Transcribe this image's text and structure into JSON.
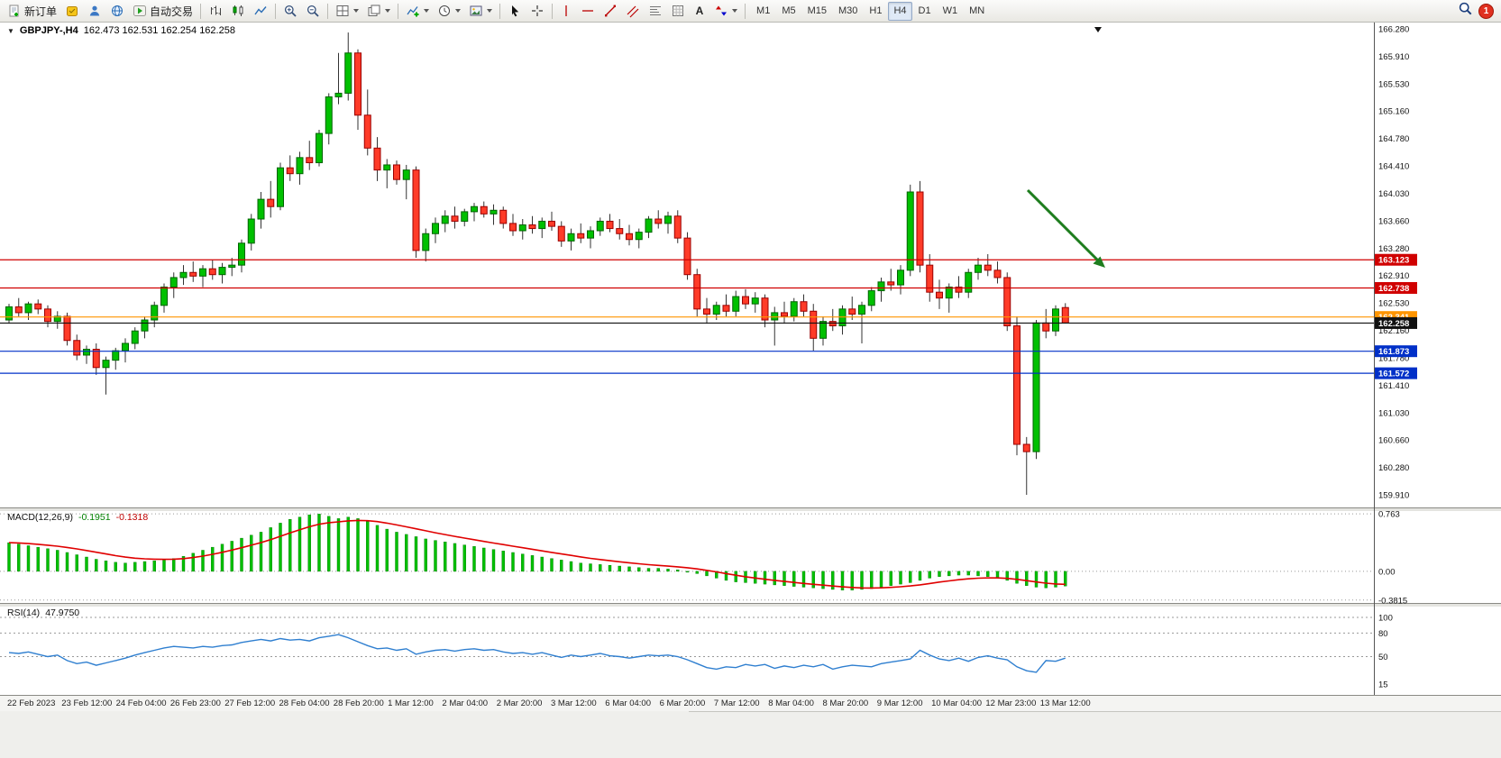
{
  "toolbar": {
    "new_order_label": "新订单",
    "autotrading_label": "自动交易",
    "timeframes": [
      "M1",
      "M5",
      "M15",
      "M30",
      "H1",
      "H4",
      "D1",
      "W1",
      "MN"
    ],
    "active_timeframe": "H4",
    "notification_count": "1",
    "icon_buttons": [
      "new-order",
      "metaeditor",
      "market",
      "help",
      "autotrading",
      "chart-bars",
      "chart-candlesticks",
      "chart-line",
      "zoom-in",
      "zoom-out",
      "tile-windows",
      "cascade-windows",
      "indicators",
      "periods-clock",
      "templates",
      "cursor",
      "crosshair",
      "vertical-line",
      "horizontal-line",
      "trendline",
      "equidistant-channel",
      "fibonacci",
      "grid",
      "text",
      "arrows",
      "shapes"
    ]
  },
  "chart_data": {
    "type": "candlestick",
    "legend": {
      "symbol": "GBPJPY-,H4",
      "ohlc": "162.473 162.531 162.254 162.258"
    },
    "price_axis": [
      "166.280",
      "165.910",
      "165.530",
      "165.160",
      "164.780",
      "164.410",
      "164.030",
      "163.660",
      "163.280",
      "162.910",
      "162.530",
      "162.160",
      "161.780",
      "161.410",
      "161.030",
      "160.660",
      "160.280",
      "159.910"
    ],
    "time_axis": [
      "22 Feb 2023",
      "23 Feb 12:00",
      "24 Feb 04:00",
      "26 Feb 23:00",
      "27 Feb 12:00",
      "28 Feb 04:00",
      "28 Feb 20:00",
      "1 Mar 12:00",
      "2 Mar 04:00",
      "2 Mar 20:00",
      "3 Mar 12:00",
      "6 Mar 04:00",
      "6 Mar 20:00",
      "7 Mar 12:00",
      "8 Mar 04:00",
      "8 Mar 20:00",
      "9 Mar 12:00",
      "10 Mar 04:00",
      "12 Mar 23:00",
      "13 Mar 12:00"
    ],
    "hlines": [
      {
        "price": 163.123,
        "label": "163.123",
        "color": "#d00000"
      },
      {
        "price": 162.738,
        "label": "162.738",
        "color": "#d00000"
      },
      {
        "price": 162.341,
        "label": "162.341",
        "color": "#ff9500"
      },
      {
        "price": 162.258,
        "label": "162.258",
        "color": "#111111"
      },
      {
        "price": 161.873,
        "label": "161.873",
        "color": "#0030c8"
      },
      {
        "price": 161.572,
        "label": "161.572",
        "color": "#0030c8"
      }
    ],
    "arrow_annotation": {
      "color": "#1e7d1e"
    },
    "colors": {
      "up": "#00c000",
      "up_border": "#006400",
      "down": "#ff3b28",
      "down_border": "#9b0000",
      "wick": "#333333"
    },
    "candles": [
      [
        162.3,
        162.52,
        162.25,
        162.48
      ],
      [
        162.48,
        162.6,
        162.35,
        162.4
      ],
      [
        162.4,
        162.55,
        162.3,
        162.52
      ],
      [
        162.52,
        162.58,
        162.38,
        162.45
      ],
      [
        162.45,
        162.5,
        162.2,
        162.28
      ],
      [
        162.28,
        162.42,
        162.18,
        162.35
      ],
      [
        162.35,
        162.4,
        161.95,
        162.02
      ],
      [
        162.02,
        162.1,
        161.75,
        161.82
      ],
      [
        161.82,
        161.95,
        161.7,
        161.9
      ],
      [
        161.9,
        161.98,
        161.55,
        161.65
      ],
      [
        161.65,
        161.8,
        161.28,
        161.75
      ],
      [
        161.75,
        161.92,
        161.62,
        161.88
      ],
      [
        161.88,
        162.05,
        161.72,
        161.98
      ],
      [
        161.98,
        162.2,
        161.9,
        162.15
      ],
      [
        162.15,
        162.35,
        162.05,
        162.3
      ],
      [
        162.3,
        162.55,
        162.2,
        162.5
      ],
      [
        162.5,
        162.8,
        162.4,
        162.75
      ],
      [
        162.75,
        162.95,
        162.6,
        162.88
      ],
      [
        162.88,
        163.05,
        162.78,
        162.95
      ],
      [
        162.95,
        163.1,
        162.82,
        162.9
      ],
      [
        162.9,
        163.05,
        162.75,
        163.0
      ],
      [
        163.0,
        163.12,
        162.85,
        162.92
      ],
      [
        162.92,
        163.08,
        162.8,
        163.02
      ],
      [
        163.02,
        163.15,
        162.9,
        163.05
      ],
      [
        163.05,
        163.4,
        162.95,
        163.35
      ],
      [
        163.35,
        163.75,
        163.25,
        163.68
      ],
      [
        163.68,
        164.05,
        163.55,
        163.95
      ],
      [
        163.95,
        164.2,
        163.7,
        163.85
      ],
      [
        163.85,
        164.45,
        163.8,
        164.38
      ],
      [
        164.38,
        164.55,
        164.2,
        164.3
      ],
      [
        164.3,
        164.6,
        164.15,
        164.52
      ],
      [
        164.52,
        164.75,
        164.35,
        164.45
      ],
      [
        164.45,
        164.9,
        164.4,
        164.85
      ],
      [
        164.85,
        165.4,
        164.7,
        165.35
      ],
      [
        165.35,
        165.95,
        165.25,
        165.4
      ],
      [
        165.4,
        166.23,
        165.3,
        165.95
      ],
      [
        165.95,
        166.0,
        164.9,
        165.1
      ],
      [
        165.1,
        165.45,
        164.55,
        164.65
      ],
      [
        164.65,
        164.8,
        164.2,
        164.35
      ],
      [
        164.35,
        164.5,
        164.1,
        164.42
      ],
      [
        164.42,
        164.48,
        164.15,
        164.22
      ],
      [
        164.22,
        164.42,
        163.95,
        164.35
      ],
      [
        164.35,
        164.4,
        163.15,
        163.25
      ],
      [
        163.25,
        163.55,
        163.1,
        163.48
      ],
      [
        163.48,
        163.7,
        163.35,
        163.62
      ],
      [
        163.62,
        163.8,
        163.5,
        163.72
      ],
      [
        163.72,
        163.85,
        163.55,
        163.65
      ],
      [
        163.65,
        163.82,
        163.58,
        163.78
      ],
      [
        163.78,
        163.9,
        163.65,
        163.85
      ],
      [
        163.85,
        163.92,
        163.7,
        163.75
      ],
      [
        163.75,
        163.88,
        163.6,
        163.8
      ],
      [
        163.8,
        163.85,
        163.55,
        163.62
      ],
      [
        163.62,
        163.75,
        163.45,
        163.52
      ],
      [
        163.52,
        163.68,
        163.4,
        163.6
      ],
      [
        163.6,
        163.72,
        163.48,
        163.55
      ],
      [
        163.55,
        163.7,
        163.42,
        163.65
      ],
      [
        163.65,
        163.78,
        163.52,
        163.58
      ],
      [
        163.58,
        163.65,
        163.3,
        163.38
      ],
      [
        163.38,
        163.55,
        163.25,
        163.48
      ],
      [
        163.48,
        163.62,
        163.35,
        163.42
      ],
      [
        163.42,
        163.58,
        163.28,
        163.52
      ],
      [
        163.52,
        163.7,
        163.45,
        163.65
      ],
      [
        163.65,
        163.75,
        163.5,
        163.55
      ],
      [
        163.55,
        163.68,
        163.4,
        163.48
      ],
      [
        163.48,
        163.6,
        163.32,
        163.4
      ],
      [
        163.4,
        163.55,
        163.28,
        163.5
      ],
      [
        163.5,
        163.72,
        163.42,
        163.68
      ],
      [
        163.68,
        163.8,
        163.55,
        163.62
      ],
      [
        163.62,
        163.78,
        163.48,
        163.72
      ],
      [
        163.72,
        163.8,
        163.35,
        163.42
      ],
      [
        163.42,
        163.5,
        162.85,
        162.92
      ],
      [
        162.92,
        163.0,
        162.35,
        162.45
      ],
      [
        162.45,
        162.6,
        162.25,
        162.38
      ],
      [
        162.38,
        162.55,
        162.3,
        162.5
      ],
      [
        162.5,
        162.65,
        162.35,
        162.42
      ],
      [
        162.42,
        162.7,
        162.35,
        162.62
      ],
      [
        162.62,
        162.72,
        162.45,
        162.52
      ],
      [
        162.52,
        162.68,
        162.4,
        162.6
      ],
      [
        162.6,
        162.65,
        162.2,
        162.3
      ],
      [
        162.3,
        162.48,
        161.95,
        162.4
      ],
      [
        162.4,
        162.55,
        162.25,
        162.35
      ],
      [
        162.35,
        162.6,
        162.28,
        162.55
      ],
      [
        162.55,
        162.65,
        162.35,
        162.42
      ],
      [
        162.42,
        162.52,
        161.88,
        162.05
      ],
      [
        162.05,
        162.35,
        161.95,
        162.28
      ],
      [
        162.28,
        162.45,
        162.15,
        162.22
      ],
      [
        162.22,
        162.5,
        162.1,
        162.45
      ],
      [
        162.45,
        162.62,
        162.3,
        162.38
      ],
      [
        162.38,
        162.55,
        161.98,
        162.5
      ],
      [
        162.5,
        162.75,
        162.42,
        162.7
      ],
      [
        162.7,
        162.88,
        162.55,
        162.82
      ],
      [
        162.82,
        163.0,
        162.7,
        162.78
      ],
      [
        162.78,
        163.05,
        162.65,
        162.98
      ],
      [
        162.98,
        164.15,
        162.9,
        164.05
      ],
      [
        164.05,
        164.2,
        162.95,
        163.05
      ],
      [
        163.05,
        163.2,
        162.55,
        162.68
      ],
      [
        162.68,
        162.85,
        162.45,
        162.6
      ],
      [
        162.6,
        162.8,
        162.4,
        162.75
      ],
      [
        162.75,
        162.9,
        162.6,
        162.68
      ],
      [
        162.68,
        163.0,
        162.6,
        162.95
      ],
      [
        162.95,
        163.15,
        162.85,
        163.05
      ],
      [
        163.05,
        163.2,
        162.9,
        162.98
      ],
      [
        162.98,
        163.1,
        162.8,
        162.88
      ],
      [
        162.88,
        162.95,
        162.15,
        162.22
      ],
      [
        162.22,
        162.35,
        160.45,
        160.6
      ],
      [
        160.6,
        160.7,
        159.91,
        160.5
      ],
      [
        160.5,
        162.3,
        160.4,
        162.26
      ],
      [
        162.26,
        162.45,
        162.05,
        162.15
      ],
      [
        162.15,
        162.5,
        162.08,
        162.45
      ],
      [
        162.47,
        162.53,
        162.25,
        162.26
      ]
    ],
    "macd": {
      "name": "MACD(12,26,9)",
      "main_value": "-0.1951",
      "signal_value": "-0.1318",
      "axis_labels": [
        "0.763",
        "0.00",
        "-0.3815"
      ],
      "axis_values": [
        0.763,
        0,
        -0.3815
      ],
      "hist_color": "#00c000",
      "signal_color": "#e00000",
      "hist": [
        0.38,
        0.36,
        0.34,
        0.32,
        0.3,
        0.28,
        0.25,
        0.22,
        0.19,
        0.16,
        0.14,
        0.12,
        0.11,
        0.12,
        0.13,
        0.14,
        0.15,
        0.17,
        0.2,
        0.24,
        0.28,
        0.32,
        0.36,
        0.4,
        0.44,
        0.48,
        0.52,
        0.58,
        0.64,
        0.69,
        0.72,
        0.75,
        0.76,
        0.73,
        0.7,
        0.72,
        0.7,
        0.66,
        0.61,
        0.56,
        0.52,
        0.49,
        0.46,
        0.43,
        0.41,
        0.39,
        0.37,
        0.35,
        0.33,
        0.31,
        0.29,
        0.27,
        0.25,
        0.23,
        0.21,
        0.19,
        0.17,
        0.15,
        0.13,
        0.11,
        0.1,
        0.09,
        0.08,
        0.07,
        0.06,
        0.05,
        0.04,
        0.04,
        0.03,
        0.02,
        0.0,
        -0.03,
        -0.06,
        -0.09,
        -0.12,
        -0.14,
        -0.15,
        -0.16,
        -0.17,
        -0.18,
        -0.19,
        -0.2,
        -0.21,
        -0.22,
        -0.23,
        -0.24,
        -0.25,
        -0.25,
        -0.24,
        -0.23,
        -0.21,
        -0.19,
        -0.17,
        -0.15,
        -0.12,
        -0.09,
        -0.07,
        -0.06,
        -0.05,
        -0.05,
        -0.06,
        -0.07,
        -0.09,
        -0.12,
        -0.16,
        -0.19,
        -0.21,
        -0.22,
        -0.21,
        -0.195
      ]
    },
    "rsi": {
      "name": "RSI(14)",
      "value": "47.9750",
      "axis_labels": [
        "100",
        "80",
        "50",
        "15"
      ],
      "axis_values": [
        100,
        80,
        50,
        15
      ],
      "line_color": "#2f7fd0",
      "values": [
        55,
        54,
        56,
        53,
        50,
        52,
        45,
        41,
        43,
        39,
        42,
        45,
        48,
        52,
        55,
        58,
        61,
        63,
        62,
        61,
        63,
        62,
        64,
        65,
        68,
        70,
        72,
        70,
        73,
        71,
        72,
        70,
        74,
        76,
        78,
        74,
        69,
        64,
        60,
        61,
        58,
        60,
        53,
        56,
        58,
        59,
        57,
        59,
        60,
        58,
        59,
        56,
        54,
        55,
        53,
        55,
        52,
        49,
        52,
        50,
        52,
        54,
        51,
        50,
        48,
        50,
        52,
        51,
        52,
        50,
        46,
        41,
        36,
        34,
        37,
        36,
        40,
        38,
        40,
        35,
        38,
        36,
        39,
        37,
        40,
        34,
        37,
        39,
        38,
        37,
        41,
        43,
        45,
        47,
        58,
        52,
        47,
        45,
        48,
        44,
        49,
        51,
        48,
        46,
        37,
        32,
        30,
        45,
        44,
        48
      ]
    }
  }
}
